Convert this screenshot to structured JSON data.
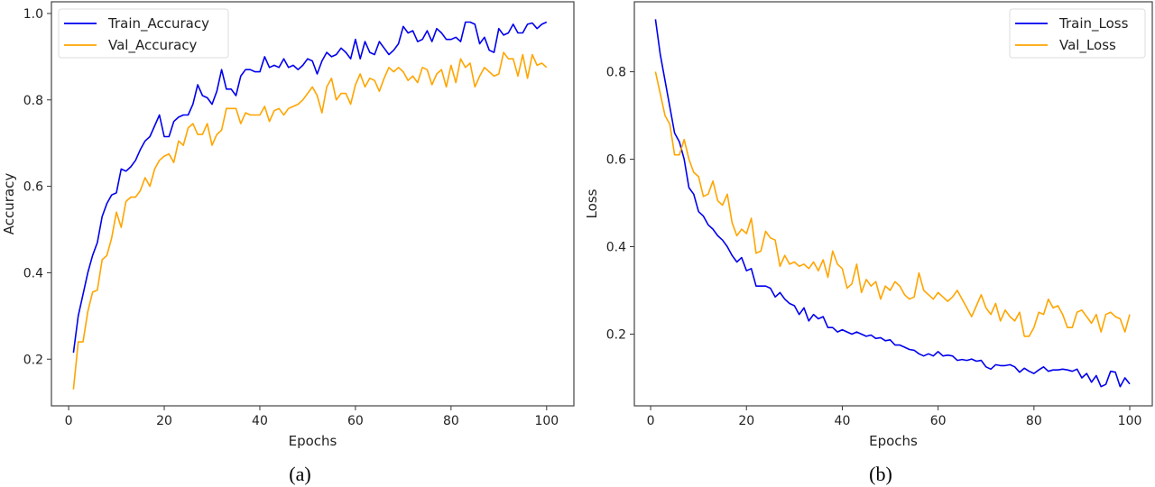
{
  "chart_data": [
    {
      "type": "line",
      "caption": "(a)",
      "xlabel": "Epochs",
      "ylabel": "Accuracy",
      "xlim": [
        -3.6,
        105.7
      ],
      "ylim": [
        0.092,
        1.027
      ],
      "xticks": [
        0,
        20,
        40,
        60,
        80,
        100
      ],
      "yticks": [
        0.2,
        0.4,
        0.6,
        0.8,
        1.0
      ],
      "ytick_labels": [
        "0.2",
        "0.4",
        "0.6",
        "0.8",
        "1.0"
      ],
      "legend_position": "top-left",
      "series": [
        {
          "name": "Train_Accuracy",
          "color": "#0000ee",
          "values": [
            0.215,
            0.3,
            0.35,
            0.4,
            0.44,
            0.47,
            0.53,
            0.56,
            0.58,
            0.585,
            0.64,
            0.635,
            0.645,
            0.66,
            0.685,
            0.705,
            0.715,
            0.74,
            0.765,
            0.715,
            0.715,
            0.75,
            0.76,
            0.765,
            0.765,
            0.79,
            0.835,
            0.81,
            0.805,
            0.79,
            0.82,
            0.87,
            0.825,
            0.825,
            0.81,
            0.855,
            0.87,
            0.87,
            0.865,
            0.865,
            0.9,
            0.875,
            0.88,
            0.875,
            0.895,
            0.875,
            0.88,
            0.87,
            0.88,
            0.895,
            0.89,
            0.86,
            0.89,
            0.91,
            0.9,
            0.905,
            0.92,
            0.91,
            0.895,
            0.94,
            0.895,
            0.935,
            0.91,
            0.905,
            0.935,
            0.92,
            0.905,
            0.915,
            0.93,
            0.97,
            0.955,
            0.96,
            0.935,
            0.94,
            0.96,
            0.935,
            0.965,
            0.955,
            0.94,
            0.94,
            0.945,
            0.935,
            0.98,
            0.98,
            0.975,
            0.93,
            0.945,
            0.915,
            0.91,
            0.965,
            0.95,
            0.955,
            0.975,
            0.955,
            0.955,
            0.975,
            0.978,
            0.965,
            0.975,
            0.98
          ]
        },
        {
          "name": "Val_Accuracy",
          "color": "#ffa500",
          "values": [
            0.13,
            0.24,
            0.24,
            0.31,
            0.355,
            0.36,
            0.43,
            0.44,
            0.48,
            0.54,
            0.505,
            0.565,
            0.575,
            0.575,
            0.59,
            0.62,
            0.6,
            0.64,
            0.66,
            0.67,
            0.675,
            0.655,
            0.705,
            0.695,
            0.735,
            0.745,
            0.72,
            0.72,
            0.745,
            0.695,
            0.72,
            0.73,
            0.78,
            0.78,
            0.78,
            0.745,
            0.77,
            0.765,
            0.765,
            0.765,
            0.785,
            0.75,
            0.775,
            0.78,
            0.765,
            0.78,
            0.785,
            0.79,
            0.8,
            0.815,
            0.83,
            0.81,
            0.77,
            0.83,
            0.85,
            0.8,
            0.815,
            0.815,
            0.79,
            0.835,
            0.86,
            0.83,
            0.85,
            0.845,
            0.82,
            0.85,
            0.875,
            0.865,
            0.875,
            0.865,
            0.845,
            0.855,
            0.84,
            0.875,
            0.87,
            0.835,
            0.86,
            0.87,
            0.83,
            0.88,
            0.84,
            0.895,
            0.875,
            0.885,
            0.83,
            0.855,
            0.875,
            0.865,
            0.855,
            0.86,
            0.91,
            0.895,
            0.895,
            0.855,
            0.905,
            0.85,
            0.905,
            0.88,
            0.885,
            0.875
          ]
        }
      ]
    },
    {
      "type": "line",
      "caption": "(b)",
      "xlabel": "Epochs",
      "ylabel": "Loss",
      "xlim": [
        -3.4,
        104.7
      ],
      "ylim": [
        0.036,
        0.96
      ],
      "xticks": [
        0,
        20,
        40,
        60,
        80,
        100
      ],
      "yticks": [
        0.2,
        0.4,
        0.6,
        0.8
      ],
      "ytick_labels": [
        "0.2",
        "0.4",
        "0.6",
        "0.8"
      ],
      "legend_position": "top-right",
      "series": [
        {
          "name": "Train_Loss",
          "color": "#0000ee",
          "values": [
            0.92,
            0.84,
            0.78,
            0.72,
            0.66,
            0.64,
            0.6,
            0.535,
            0.52,
            0.48,
            0.47,
            0.45,
            0.44,
            0.425,
            0.415,
            0.4,
            0.38,
            0.365,
            0.375,
            0.345,
            0.35,
            0.31,
            0.31,
            0.31,
            0.305,
            0.285,
            0.295,
            0.28,
            0.27,
            0.265,
            0.245,
            0.26,
            0.23,
            0.245,
            0.235,
            0.24,
            0.215,
            0.215,
            0.205,
            0.21,
            0.205,
            0.2,
            0.205,
            0.2,
            0.195,
            0.198,
            0.19,
            0.192,
            0.185,
            0.187,
            0.175,
            0.175,
            0.17,
            0.165,
            0.163,
            0.155,
            0.15,
            0.155,
            0.15,
            0.16,
            0.15,
            0.152,
            0.15,
            0.14,
            0.142,
            0.14,
            0.143,
            0.138,
            0.14,
            0.125,
            0.12,
            0.13,
            0.128,
            0.128,
            0.13,
            0.125,
            0.113,
            0.122,
            0.115,
            0.11,
            0.118,
            0.125,
            0.115,
            0.118,
            0.118,
            0.12,
            0.118,
            0.115,
            0.12,
            0.1,
            0.11,
            0.09,
            0.105,
            0.08,
            0.085,
            0.115,
            0.113,
            0.08,
            0.1,
            0.086
          ]
        },
        {
          "name": "Val_Loss",
          "color": "#ffa500",
          "values": [
            0.8,
            0.75,
            0.7,
            0.68,
            0.61,
            0.61,
            0.645,
            0.6,
            0.57,
            0.56,
            0.515,
            0.52,
            0.55,
            0.505,
            0.495,
            0.52,
            0.455,
            0.425,
            0.44,
            0.43,
            0.465,
            0.385,
            0.39,
            0.435,
            0.42,
            0.415,
            0.355,
            0.38,
            0.36,
            0.365,
            0.355,
            0.36,
            0.35,
            0.365,
            0.345,
            0.37,
            0.33,
            0.39,
            0.36,
            0.35,
            0.305,
            0.315,
            0.36,
            0.295,
            0.325,
            0.31,
            0.32,
            0.28,
            0.31,
            0.3,
            0.32,
            0.31,
            0.29,
            0.28,
            0.285,
            0.34,
            0.3,
            0.29,
            0.28,
            0.295,
            0.285,
            0.275,
            0.285,
            0.3,
            0.28,
            0.26,
            0.24,
            0.265,
            0.29,
            0.26,
            0.245,
            0.27,
            0.23,
            0.255,
            0.24,
            0.23,
            0.25,
            0.195,
            0.195,
            0.215,
            0.25,
            0.245,
            0.28,
            0.26,
            0.265,
            0.245,
            0.215,
            0.215,
            0.25,
            0.255,
            0.24,
            0.225,
            0.245,
            0.205,
            0.245,
            0.25,
            0.24,
            0.235,
            0.205,
            0.245
          ]
        }
      ]
    }
  ]
}
